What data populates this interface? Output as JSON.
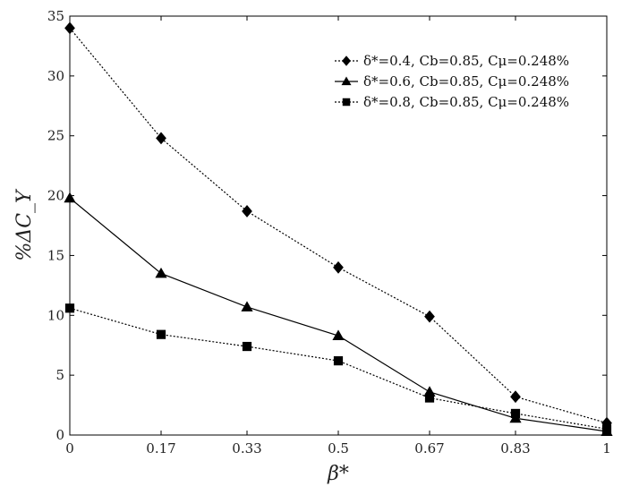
{
  "chart_data": {
    "type": "line",
    "title": "",
    "xlabel": "β*",
    "ylabel": "%ΔC_Y",
    "x": [
      0,
      0.17,
      0.33,
      0.5,
      0.67,
      0.83,
      1
    ],
    "x_tick_labels": [
      "0",
      "0.17",
      "0.33",
      "0.5",
      "0.67",
      "0.83",
      "1"
    ],
    "y_ticks": [
      0,
      5,
      10,
      15,
      20,
      25,
      30,
      35
    ],
    "xlim": [
      0,
      1
    ],
    "ylim": [
      0,
      35
    ],
    "grid": false,
    "legend_position": "top-right",
    "series": [
      {
        "name": "δ*=0.4, Cb=0.85, Cμ=0.248%",
        "values": [
          34.0,
          24.8,
          18.7,
          14.0,
          9.9,
          3.2,
          1.0
        ],
        "marker": "diamond",
        "line_style": "dotted",
        "color": "#000000"
      },
      {
        "name": "δ*=0.6, Cb=0.85, Cμ=0.248%",
        "values": [
          19.8,
          13.5,
          10.7,
          8.3,
          3.6,
          1.4,
          0.3
        ],
        "marker": "triangle",
        "line_style": "solid",
        "color": "#000000"
      },
      {
        "name": "δ*=0.8, Cb=0.85, Cμ=0.248%",
        "values": [
          10.6,
          8.4,
          7.4,
          6.2,
          3.1,
          1.8,
          0.5
        ],
        "marker": "square",
        "line_style": "dotted",
        "color": "#000000"
      }
    ]
  }
}
